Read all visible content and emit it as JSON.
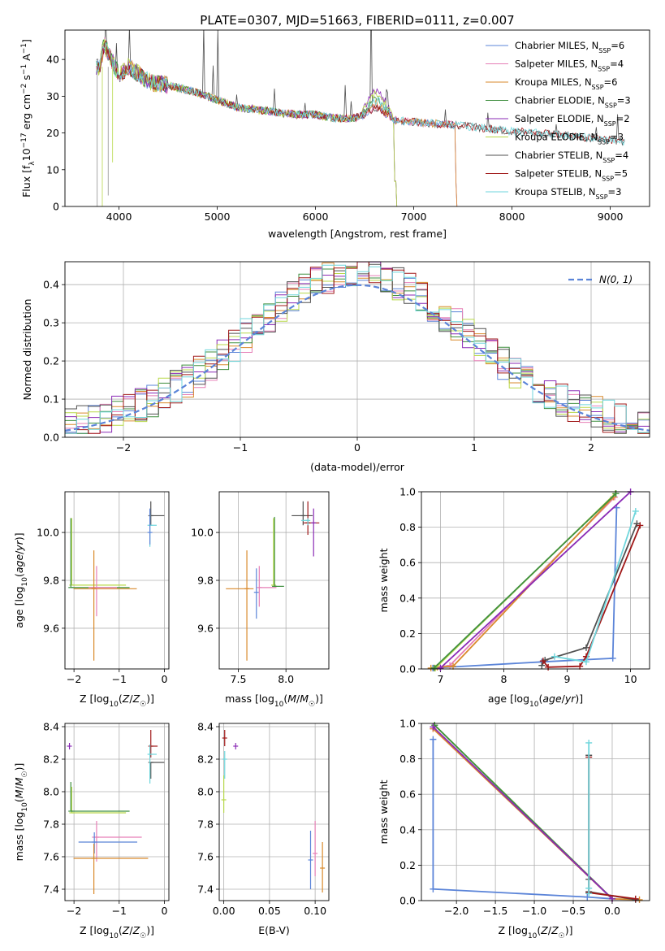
{
  "title": "PLATE=0307, MJD=51663, FIBERID=0111, z=0.007",
  "colors": {
    "Chabrier MILES": "#5b84d8",
    "Salpeter MILES": "#e67fb6",
    "Kroupa MILES": "#d98a2c",
    "Chabrier ELODIE": "#3f8f3f",
    "Salpeter ELODIE": "#8a2ab5",
    "Kroupa ELODIE": "#b8d84a",
    "Chabrier STELIB": "#505050",
    "Salpeter STELIB": "#a01818",
    "Kroupa STELIB": "#6fd6dc"
  },
  "legend_labels": {
    "spectrum": [
      {
        "name": "Chabrier MILES",
        "nssp": "6"
      },
      {
        "name": "Salpeter MILES",
        "nssp": "4"
      },
      {
        "name": "Kroupa MILES",
        "nssp": "6"
      },
      {
        "name": "Chabrier ELODIE",
        "nssp": "3"
      },
      {
        "name": "Salpeter ELODIE",
        "nssp": "2"
      },
      {
        "name": "Kroupa ELODIE",
        "nssp": "3"
      },
      {
        "name": "Chabrier STELIB",
        "nssp": "4"
      },
      {
        "name": "Salpeter STELIB",
        "nssp": "5"
      },
      {
        "name": "Kroupa STELIB",
        "nssp": "3"
      }
    ],
    "normal": "N(0, 1)"
  },
  "chart_data": [
    {
      "id": "spectrum",
      "type": "line",
      "xlabel": "wavelength [Angstrom, rest frame]",
      "ylabel": "Flux [f_λ 10^-17 erg cm^-2 s^-1 A^-1]",
      "xlim": [
        3450,
        9400
      ],
      "ylim": [
        0,
        48
      ],
      "xticks": [
        "4000",
        "5000",
        "6000",
        "7000",
        "8000",
        "9000"
      ],
      "yticks": [
        "0",
        "10",
        "20",
        "30",
        "40"
      ],
      "grid": false,
      "legend": "top-right",
      "continuum": {
        "x": [
          3800,
          3850,
          3900,
          4000,
          4100,
          4300,
          4500,
          4800,
          5000,
          5200,
          5500,
          5800,
          6000,
          6200,
          6400,
          6500,
          6550,
          6600,
          6650,
          6700,
          6750,
          6800,
          7000,
          7500,
          8000,
          8500,
          9000,
          9100
        ],
        "y": [
          38,
          44,
          41,
          36,
          38,
          34,
          33,
          31,
          29,
          27,
          26,
          25,
          25,
          24,
          24,
          25,
          26,
          27,
          26.5,
          25.5,
          24.5,
          23.5,
          23,
          22,
          20.5,
          19.5,
          18,
          17.5
        ]
      },
      "bumps": {
        "Salpeter ELODIE": 4.5,
        "Kroupa ELODIE": 3.5,
        "Kroupa STELIB": 2.0,
        "Chabrier ELODIE": 2.5,
        "Kroupa MILES": 1.0
      },
      "cutoffs": {
        "Kroupa ELODIE": 6800,
        "Salpeter ELODIE": 6800,
        "Chabrier ELODIE": 6800,
        "Kroupa MILES": 7420,
        "Salpeter MILES": 7420,
        "Chabrier MILES": 7420
      },
      "emission_lines": [
        3727,
        3869,
        3970,
        4102,
        4340,
        4861,
        4959,
        5007,
        5200,
        5577,
        5890,
        6300,
        6364,
        6548,
        6563,
        6584,
        6717,
        6731,
        7136,
        7319,
        7751,
        8446,
        8860,
        9069
      ],
      "emission_heights": [
        40,
        8,
        6,
        10,
        15,
        18,
        10,
        20,
        3,
        6,
        4,
        9,
        5,
        8,
        30,
        10,
        6,
        6,
        5,
        4,
        4,
        3,
        3,
        8
      ]
    },
    {
      "id": "residuals",
      "type": "histogram",
      "xlabel": "(data-model)/error",
      "ylabel": "Normed distribution",
      "xlim": [
        -2.5,
        2.5
      ],
      "ylim": [
        0,
        0.46
      ],
      "xticks": [
        "−2",
        "−1",
        "0",
        "1",
        "2"
      ],
      "yticks": [
        "0.0",
        "0.1",
        "0.2",
        "0.3",
        "0.4"
      ],
      "grid": true,
      "legend": "top-right",
      "bins": 50,
      "reference_curve": "normal(0,1)"
    },
    {
      "id": "age_vs_Z",
      "type": "scatter",
      "xlabel": "Z [log10(Z/Z☉)]",
      "ylabel": "age [log10(age/yr)]",
      "xlim": [
        -2.2,
        0.1
      ],
      "ylim": [
        9.43,
        10.17
      ],
      "xticks": [
        "−2",
        "−1",
        "0"
      ],
      "yticks": [
        "9.6",
        "9.8",
        "10.0"
      ],
      "grid": true,
      "points": [
        {
          "series": "Kroupa ELODIE",
          "x": -2.05,
          "xerr": [
            0.0,
            1.2
          ],
          "y": 9.78,
          "yerr": [
            0.0,
            0.28
          ]
        },
        {
          "series": "Chabrier ELODIE",
          "x": -2.07,
          "xerr": [
            0.0,
            1.3
          ],
          "y": 9.77,
          "yerr": [
            0.0,
            0.29
          ]
        },
        {
          "series": "Salpeter MILES",
          "x": -1.5,
          "xerr": [
            0.18,
            0.45
          ],
          "y": 9.77,
          "yerr": [
            0.12,
            0.09
          ]
        },
        {
          "series": "Kroupa MILES",
          "x": -1.56,
          "xerr": [
            0.45,
            0.95
          ],
          "y": 9.765,
          "yerr": [
            0.3,
            0.16
          ]
        },
        {
          "series": "Chabrier STELIB",
          "x": -0.3,
          "xerr": [
            0.0,
            0.3
          ],
          "y": 10.07,
          "yerr": [
            0.04,
            0.06
          ]
        },
        {
          "series": "Kroupa STELIB",
          "x": -0.32,
          "xerr": [
            0.0,
            0.15
          ],
          "y": 10.03,
          "yerr": [
            0.09,
            0.05
          ]
        },
        {
          "series": "Chabrier MILES",
          "x": -0.32,
          "xerr": [
            0.0,
            0.0
          ],
          "y": 10.0,
          "yerr": [
            0.05,
            0.1
          ]
        }
      ]
    },
    {
      "id": "age_vs_mass",
      "type": "scatter",
      "xlabel": "mass [log10(M/M☉)]",
      "ylabel": "",
      "xlim": [
        7.3,
        8.45
      ],
      "ylim": [
        9.43,
        10.17
      ],
      "xticks": [
        "7.5",
        "8.0"
      ],
      "yticks": [
        "9.6",
        "9.8",
        "10.0"
      ],
      "grid": true,
      "points": [
        {
          "series": "Kroupa MILES",
          "x": 7.59,
          "xerr": [
            0.22,
            0.07
          ],
          "y": 9.765,
          "yerr": [
            0.3,
            0.16
          ]
        },
        {
          "series": "Chabrier MILES",
          "x": 7.69,
          "xerr": [
            0.0,
            0.0
          ],
          "y": 9.75,
          "yerr": [
            0.11,
            0.1
          ]
        },
        {
          "series": "Salpeter MILES",
          "x": 7.72,
          "xerr": [
            0.0,
            0.18
          ],
          "y": 9.77,
          "yerr": [
            0.08,
            0.09
          ]
        },
        {
          "series": "Kroupa ELODIE",
          "x": 7.87,
          "xerr": [
            0.0,
            0.0
          ],
          "y": 9.78,
          "yerr": [
            0.0,
            0.28
          ]
        },
        {
          "series": "Chabrier ELODIE",
          "x": 7.88,
          "xerr": [
            0.0,
            0.1
          ],
          "y": 9.775,
          "yerr": [
            0.0,
            0.29
          ]
        },
        {
          "series": "Chabrier STELIB",
          "x": 8.18,
          "xerr": [
            0.12,
            0.1
          ],
          "y": 10.07,
          "yerr": [
            0.04,
            0.06
          ]
        },
        {
          "series": "Salpeter STELIB",
          "x": 8.23,
          "xerr": [
            0.05,
            0.12
          ],
          "y": 10.04,
          "yerr": [
            0.05,
            0.09
          ]
        },
        {
          "series": "Kroupa STELIB",
          "x": 8.23,
          "xerr": [
            0.07,
            0.0
          ],
          "y": 10.05,
          "yerr": [
            0.02,
            0.01
          ]
        },
        {
          "series": "Salpeter ELODIE",
          "x": 8.29,
          "xerr": [
            0.0,
            0.0
          ],
          "y": 10.04,
          "yerr": [
            0.14,
            0.06
          ]
        }
      ]
    },
    {
      "id": "weight_vs_age",
      "type": "line",
      "xlabel": "age [log10(age/yr)]",
      "ylabel": "mass weight",
      "xlim": [
        6.7,
        10.3
      ],
      "ylim": [
        0,
        1
      ],
      "xticks": [
        "7",
        "8",
        "9",
        "10"
      ],
      "yticks": [
        "0.0",
        "0.2",
        "0.4",
        "0.6",
        "0.8",
        "1.0"
      ],
      "grid": true,
      "series": [
        {
          "name": "Chabrier MILES",
          "x": [
            9.78,
            9.72,
            8.6,
            6.88
          ],
          "y": [
            0.91,
            0.06,
            0.04,
            0.005
          ]
        },
        {
          "name": "Salpeter MILES",
          "x": [
            9.75,
            7.15,
            6.9
          ],
          "y": [
            0.97,
            0.02,
            0.005
          ]
        },
        {
          "name": "Kroupa MILES",
          "x": [
            9.73,
            7.2,
            6.95,
            6.85
          ],
          "y": [
            0.97,
            0.015,
            0.01,
            0.005
          ]
        },
        {
          "name": "Kroupa ELODIE",
          "x": [
            9.76,
            6.92
          ],
          "y": [
            0.99,
            0.005
          ]
        },
        {
          "name": "Chabrier ELODIE",
          "x": [
            9.77,
            6.9
          ],
          "y": [
            0.99,
            0.005
          ]
        },
        {
          "name": "Salpeter ELODIE",
          "x": [
            10.0,
            7.0
          ],
          "y": [
            1.0,
            0.005
          ]
        },
        {
          "name": "Chabrier STELIB",
          "x": [
            10.1,
            9.3,
            8.65,
            8.6
          ],
          "y": [
            0.82,
            0.12,
            0.05,
            0.02
          ]
        },
        {
          "name": "Salpeter STELIB",
          "x": [
            10.15,
            9.3,
            9.2,
            8.7,
            8.62
          ],
          "y": [
            0.81,
            0.07,
            0.015,
            0.01,
            0.045
          ]
        },
        {
          "name": "Kroupa STELIB",
          "x": [
            10.08,
            9.3,
            8.8
          ],
          "y": [
            0.89,
            0.04,
            0.07
          ]
        }
      ]
    },
    {
      "id": "mass_vs_Z",
      "type": "scatter",
      "xlabel": "Z [log10(Z/Z☉)]",
      "ylabel": "mass [log10(M/M☉)]",
      "xlim": [
        -2.2,
        0.1
      ],
      "ylim": [
        7.33,
        8.42
      ],
      "xticks": [
        "−2",
        "−1",
        "0"
      ],
      "yticks": [
        "7.4",
        "7.6",
        "7.8",
        "8.0",
        "8.2",
        "8.4"
      ],
      "grid": true,
      "points": [
        {
          "series": "Salpeter ELODIE",
          "x": -2.1,
          "xerr": [
            0.0,
            0.0
          ],
          "y": 8.28,
          "yerr": [
            0.02,
            0.02
          ]
        },
        {
          "series": "Kroupa ELODIE",
          "x": -2.05,
          "xerr": [
            0.0,
            1.2
          ],
          "y": 7.87,
          "yerr": [
            0.0,
            0.16
          ]
        },
        {
          "series": "Chabrier ELODIE",
          "x": -2.07,
          "xerr": [
            0.0,
            1.3
          ],
          "y": 7.88,
          "yerr": [
            0.0,
            0.18
          ]
        },
        {
          "series": "Salpeter MILES",
          "x": -1.5,
          "xerr": [
            0.1,
            1.0
          ],
          "y": 7.72,
          "yerr": [
            0.15,
            0.1
          ]
        },
        {
          "series": "Chabrier MILES",
          "x": -1.55,
          "xerr": [
            0.35,
            0.95
          ],
          "y": 7.69,
          "yerr": [
            0.07,
            0.06
          ]
        },
        {
          "series": "Kroupa MILES",
          "x": -1.56,
          "xerr": [
            0.45,
            1.2
          ],
          "y": 7.59,
          "yerr": [
            0.22,
            0.09
          ]
        },
        {
          "series": "Salpeter STELIB",
          "x": -0.3,
          "xerr": [
            0.0,
            0.15
          ],
          "y": 8.28,
          "yerr": [
            0.07,
            0.1
          ]
        },
        {
          "series": "Chabrier STELIB",
          "x": -0.3,
          "xerr": [
            0.0,
            0.3
          ],
          "y": 8.18,
          "yerr": [
            0.1,
            0.0
          ]
        },
        {
          "series": "Kroupa STELIB",
          "x": -0.32,
          "xerr": [
            0.0,
            0.15
          ],
          "y": 8.23,
          "yerr": [
            0.18,
            0.06
          ]
        }
      ]
    },
    {
      "id": "mass_vs_EBV",
      "type": "scatter",
      "xlabel": "E(B-V)",
      "ylabel": "",
      "xlim": [
        -0.005,
        0.115
      ],
      "ylim": [
        7.33,
        8.42
      ],
      "xticks": [
        "0.00",
        "0.05",
        "0.10"
      ],
      "yticks": [
        "7.4",
        "7.6",
        "7.8",
        "8.0",
        "8.2",
        "8.4"
      ],
      "grid": true,
      "points": [
        {
          "series": "Kroupa ELODIE",
          "x": 0.0,
          "y": 7.95,
          "yerr": [
            0.08,
            0.15
          ]
        },
        {
          "series": "Kroupa STELIB",
          "x": 0.001,
          "y": 8.2,
          "yerr": [
            0.12,
            0.05
          ]
        },
        {
          "series": "Salpeter STELIB",
          "x": 0.001,
          "y": 8.33,
          "yerr": [
            0.05,
            0.05
          ]
        },
        {
          "series": "Salpeter ELODIE",
          "x": 0.013,
          "y": 8.28,
          "yerr": [
            0.02,
            0.02
          ]
        },
        {
          "series": "Chabrier MILES",
          "x": 0.095,
          "y": 7.58,
          "yerr": [
            0.18,
            0.18
          ]
        },
        {
          "series": "Salpeter MILES",
          "x": 0.1,
          "y": 7.62,
          "yerr": [
            0.14,
            0.2
          ]
        },
        {
          "series": "Kroupa MILES",
          "x": 0.108,
          "y": 7.53,
          "yerr": [
            0.15,
            0.16
          ]
        }
      ]
    },
    {
      "id": "weight_vs_Z",
      "type": "line",
      "xlabel": "Z [log10(Z/Z☉)]",
      "ylabel": "mass weight",
      "xlim": [
        -2.45,
        0.48
      ],
      "ylim": [
        0,
        1
      ],
      "xticks": [
        "−2.0",
        "−1.5",
        "−1.0",
        "−0.5",
        "0.0"
      ],
      "yticks": [
        "0.0",
        "0.2",
        "0.4",
        "0.6",
        "0.8",
        "1.0"
      ],
      "grid": true,
      "series": [
        {
          "name": "Chabrier MILES",
          "x": [
            -2.3,
            -2.3,
            -0.32,
            0.0
          ],
          "y": [
            0.91,
            0.065,
            0.02,
            0.01
          ]
        },
        {
          "name": "Salpeter MILES",
          "x": [
            -2.3,
            0.0
          ],
          "y": [
            0.97,
            0.01
          ]
        },
        {
          "name": "Kroupa MILES",
          "x": [
            -2.3,
            0.0,
            0.35
          ],
          "y": [
            0.97,
            0.01,
            0.005
          ]
        },
        {
          "name": "Kroupa ELODIE",
          "x": [
            -2.28,
            0.0
          ],
          "y": [
            0.99,
            0.01
          ]
        },
        {
          "name": "Chabrier ELODIE",
          "x": [
            -2.28,
            0.0
          ],
          "y": [
            0.99,
            0.01
          ]
        },
        {
          "name": "Salpeter ELODIE",
          "x": [
            -2.3,
            0.0
          ],
          "y": [
            0.98,
            0.01
          ]
        },
        {
          "name": "Chabrier STELIB",
          "x": [
            -0.3,
            -0.3,
            -0.3,
            0.3
          ],
          "y": [
            0.82,
            0.12,
            0.05,
            0.005
          ]
        },
        {
          "name": "Salpeter STELIB",
          "x": [
            -0.3,
            -0.3,
            0.3
          ],
          "y": [
            0.81,
            0.045,
            0.01
          ]
        },
        {
          "name": "Kroupa STELIB",
          "x": [
            -0.3,
            -0.3,
            -0.3
          ],
          "y": [
            0.89,
            0.07,
            0.04
          ]
        }
      ]
    }
  ]
}
